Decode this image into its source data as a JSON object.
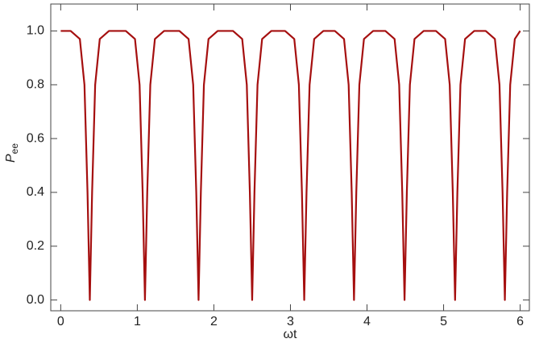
{
  "chart_data": {
    "type": "line",
    "xlabel": "ωt",
    "ylabel": {
      "main": "P",
      "sub": "ee"
    },
    "xlim": [
      -0.13,
      6.12
    ],
    "ylim": [
      -0.04,
      1.1
    ],
    "xticks": [
      0,
      1,
      2,
      3,
      4,
      5,
      6
    ],
    "yticks": [
      {
        "value": 0,
        "label": "0.0"
      },
      0.2,
      0.4,
      0.6,
      0.8,
      {
        "value": 1,
        "label": "1.0"
      }
    ],
    "grid": false,
    "series": [
      {
        "color": "#a50f0f",
        "x": [
          0,
          0.13,
          0.25,
          0.31,
          0.35,
          0.38,
          0.41,
          0.45,
          0.51,
          0.63,
          0.85,
          0.97,
          1.03,
          1.07,
          1.1,
          1.13,
          1.17,
          1.23,
          1.35,
          1.55,
          1.67,
          1.73,
          1.77,
          1.8,
          1.83,
          1.87,
          1.93,
          2.05,
          2.25,
          2.37,
          2.43,
          2.47,
          2.5,
          2.53,
          2.57,
          2.63,
          2.75,
          2.93,
          3.05,
          3.11,
          3.15,
          3.18,
          3.21,
          3.25,
          3.31,
          3.43,
          3.58,
          3.7,
          3.76,
          3.8,
          3.83,
          3.86,
          3.9,
          3.96,
          4.08,
          4.24,
          4.36,
          4.42,
          4.46,
          4.49,
          4.52,
          4.56,
          4.62,
          4.74,
          4.9,
          5.02,
          5.08,
          5.12,
          5.15,
          5.18,
          5.22,
          5.28,
          5.4,
          5.55,
          5.67,
          5.73,
          5.77,
          5.8,
          5.83,
          5.87,
          5.93,
          6.0
        ],
        "values": [
          1,
          1,
          0.97,
          0.8,
          0.4,
          0,
          0.4,
          0.8,
          0.97,
          1,
          1,
          0.97,
          0.8,
          0.4,
          0,
          0.4,
          0.8,
          0.97,
          1,
          1,
          0.97,
          0.8,
          0.4,
          0,
          0.4,
          0.8,
          0.97,
          1,
          1,
          0.97,
          0.8,
          0.4,
          0,
          0.4,
          0.8,
          0.97,
          1,
          1,
          0.97,
          0.8,
          0.4,
          0,
          0.4,
          0.8,
          0.97,
          1,
          1,
          0.97,
          0.8,
          0.4,
          0,
          0.4,
          0.8,
          0.97,
          1,
          1,
          0.97,
          0.8,
          0.4,
          0,
          0.4,
          0.8,
          0.97,
          1,
          1,
          0.97,
          0.8,
          0.4,
          0,
          0.4,
          0.8,
          0.97,
          1,
          1,
          0.97,
          0.8,
          0.4,
          0,
          0.4,
          0.8,
          0.97,
          1
        ]
      }
    ]
  }
}
